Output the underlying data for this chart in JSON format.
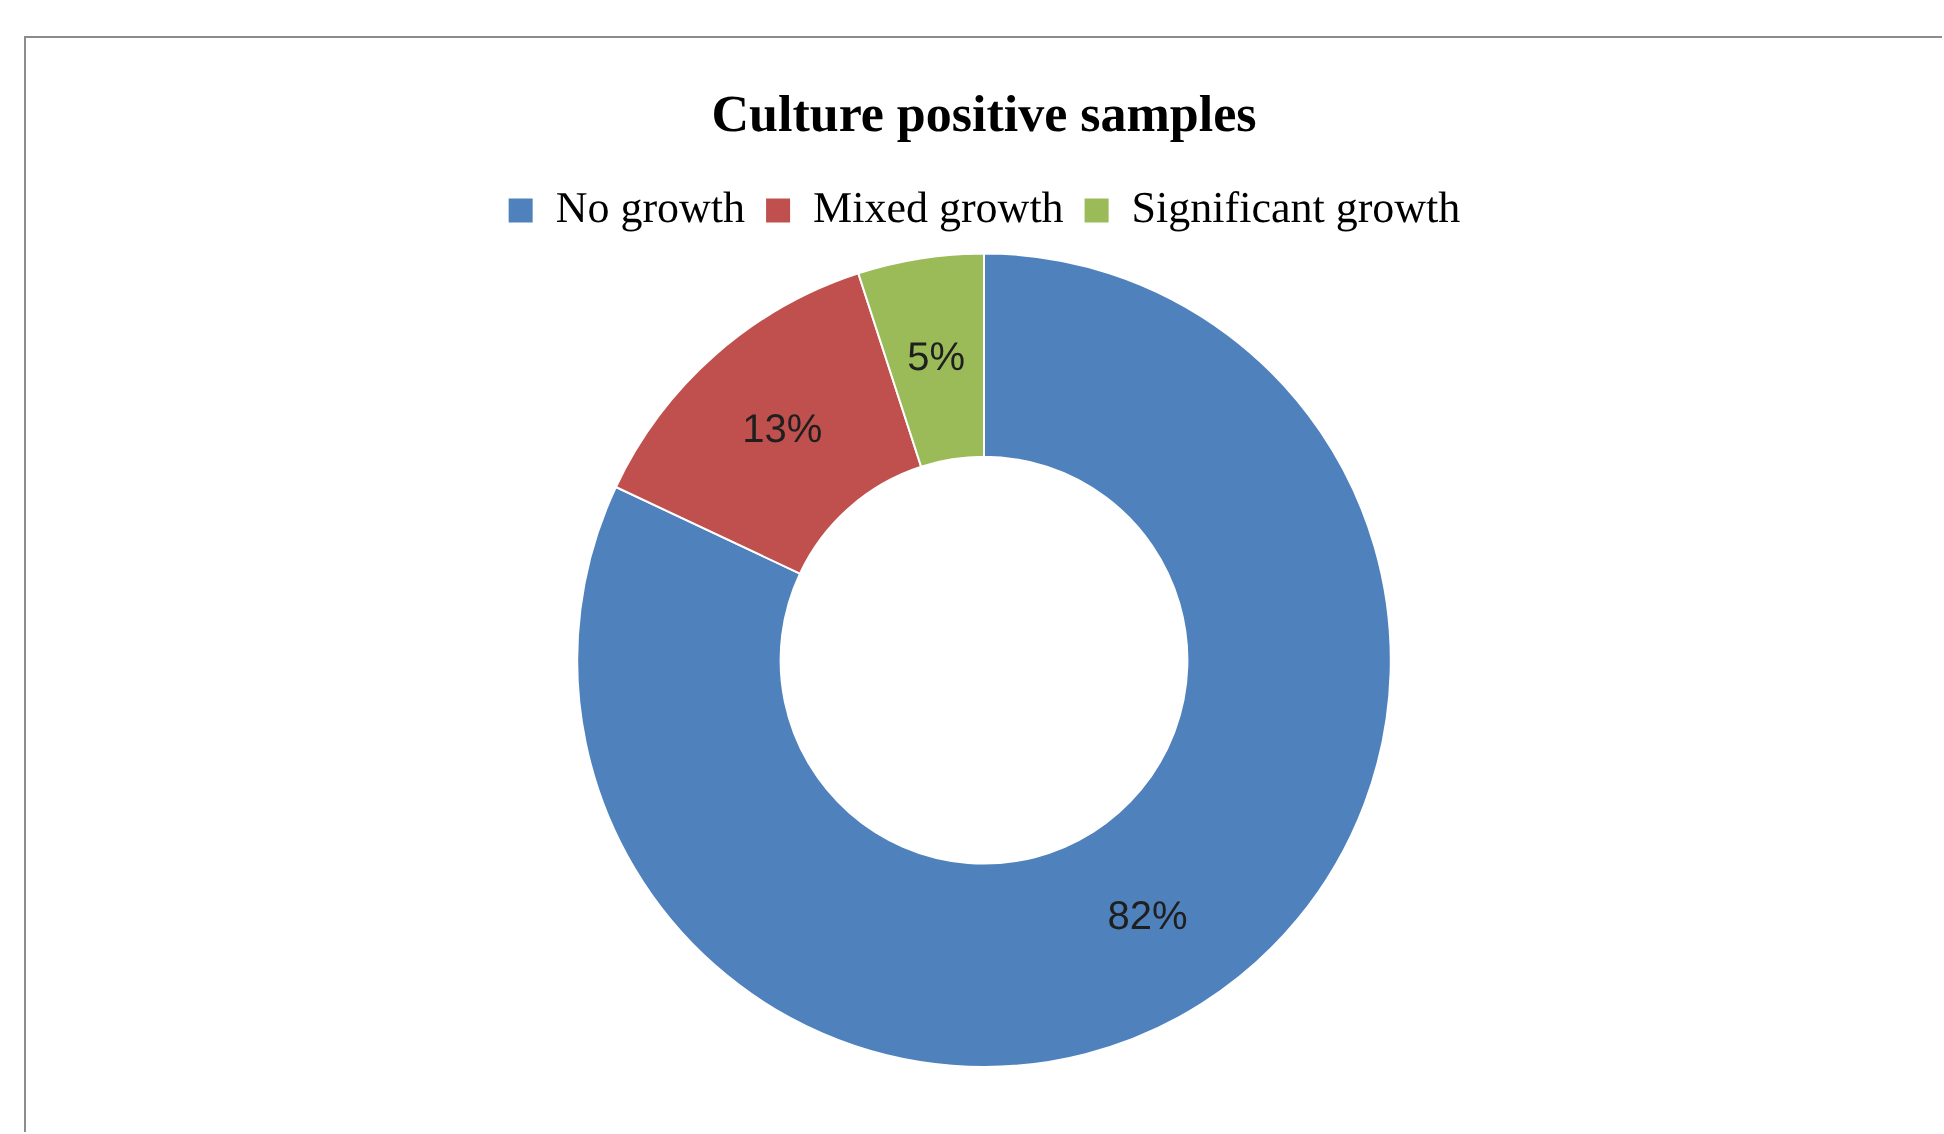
{
  "chart_data": {
    "type": "donut",
    "title": "Culture positive samples",
    "categories": [
      "No growth",
      "Mixed growth",
      "Significant growth"
    ],
    "values": [
      82,
      13,
      5
    ],
    "colors": [
      "#4f81bd",
      "#c0504d",
      "#9bbb59"
    ],
    "value_labels": [
      "82%",
      "13%",
      "5%"
    ],
    "legend": "top"
  }
}
